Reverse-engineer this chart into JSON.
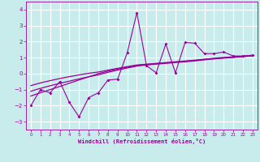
{
  "xlabel": "Windchill (Refroidissement éolien,°C)",
  "background_color": "#c8ecec",
  "grid_color": "#ffffff",
  "line_color": "#990099",
  "x_data": [
    0,
    1,
    2,
    3,
    4,
    5,
    6,
    7,
    8,
    9,
    10,
    11,
    12,
    13,
    14,
    15,
    16,
    17,
    18,
    19,
    20,
    21,
    22,
    23
  ],
  "y_main": [
    -2.0,
    -1.0,
    -1.2,
    -0.5,
    -1.8,
    -2.7,
    -1.5,
    -1.2,
    -0.4,
    -0.35,
    1.3,
    3.8,
    0.5,
    0.05,
    1.85,
    0.05,
    1.95,
    1.9,
    1.25,
    1.25,
    1.35,
    1.1,
    1.1,
    1.15
  ],
  "y_linear1": [
    -1.4,
    -1.2,
    -1.0,
    -0.8,
    -0.6,
    -0.4,
    -0.2,
    0.0,
    0.15,
    0.28,
    0.4,
    0.5,
    0.57,
    0.62,
    0.67,
    0.72,
    0.77,
    0.82,
    0.88,
    0.93,
    0.98,
    1.02,
    1.07,
    1.12
  ],
  "y_linear2": [
    -1.1,
    -0.92,
    -0.76,
    -0.61,
    -0.47,
    -0.33,
    -0.2,
    -0.08,
    0.08,
    0.22,
    0.35,
    0.47,
    0.54,
    0.59,
    0.64,
    0.69,
    0.74,
    0.79,
    0.86,
    0.92,
    0.97,
    1.01,
    1.06,
    1.11
  ],
  "y_linear3": [
    -0.75,
    -0.58,
    -0.44,
    -0.31,
    -0.19,
    -0.08,
    0.02,
    0.1,
    0.22,
    0.33,
    0.44,
    0.54,
    0.59,
    0.64,
    0.69,
    0.74,
    0.79,
    0.84,
    0.9,
    0.96,
    1.01,
    1.05,
    1.09,
    1.14
  ],
  "xlim": [
    -0.5,
    23.5
  ],
  "ylim": [
    -3.5,
    4.5
  ],
  "yticks": [
    -3,
    -2,
    -1,
    0,
    1,
    2,
    3,
    4
  ],
  "xticks": [
    0,
    1,
    2,
    3,
    4,
    5,
    6,
    7,
    8,
    9,
    10,
    11,
    12,
    13,
    14,
    15,
    16,
    17,
    18,
    19,
    20,
    21,
    22,
    23
  ],
  "xtick_labels": [
    "0",
    "1",
    "2",
    "3",
    "4",
    "5",
    "6",
    "7",
    "8",
    "9",
    "10",
    "11",
    "12",
    "13",
    "14",
    "15",
    "16",
    "17",
    "18",
    "19",
    "20",
    "21",
    "22",
    "23"
  ]
}
